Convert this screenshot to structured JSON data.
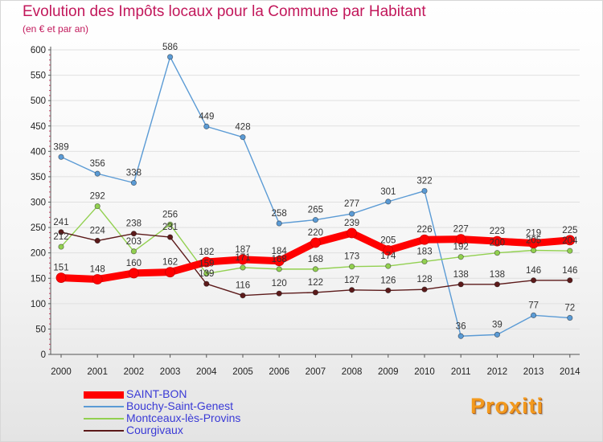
{
  "header": {
    "title": "Evolution des Impôts locaux pour la Commune par Habitant",
    "subtitle": "(en € et par an)"
  },
  "logo": {
    "text": "Proxiti"
  },
  "colors": {
    "saint_bon": "#ff0000",
    "bouchy": "#5b9bd5",
    "montceaux": "#92d050",
    "courgivaux": "#5c1a1a",
    "title": "#c2185b",
    "legend_text": "#3a3ad6"
  },
  "chart_data": {
    "type": "line",
    "title": "Evolution des Impôts locaux pour la Commune par Habitant",
    "subtitle": "(en € et par an)",
    "x": [
      "2000",
      "2001",
      "2002",
      "2003",
      "2004",
      "2005",
      "2006",
      "2007",
      "2008",
      "2009",
      "2010",
      "2011",
      "2012",
      "2013",
      "2014"
    ],
    "ylim": [
      0,
      600
    ],
    "yticks": [
      0,
      50,
      100,
      150,
      200,
      250,
      300,
      350,
      400,
      450,
      500,
      550,
      600
    ],
    "legend_position": "bottom-left",
    "series": [
      {
        "name": "SAINT-BON",
        "color": "#ff0000",
        "style": "thick",
        "values": [
          151,
          148,
          160,
          162,
          182,
          187,
          184,
          220,
          239,
          205,
          226,
          227,
          223,
          219,
          225
        ]
      },
      {
        "name": "Bouchy-Saint-Genest",
        "color": "#5b9bd5",
        "style": "thin",
        "values": [
          389,
          356,
          338,
          586,
          449,
          428,
          258,
          265,
          277,
          301,
          322,
          36,
          39,
          77,
          72
        ]
      },
      {
        "name": "Montceaux-lès-Provins",
        "color": "#92d050",
        "style": "thin",
        "values": [
          212,
          292,
          203,
          256,
          159,
          171,
          168,
          168,
          173,
          174,
          183,
          192,
          200,
          205,
          204
        ]
      },
      {
        "name": "Courgivaux",
        "color": "#5c1a1a",
        "style": "thin",
        "values": [
          241,
          224,
          238,
          231,
          139,
          116,
          120,
          122,
          127,
          126,
          128,
          138,
          138,
          146,
          146
        ]
      }
    ]
  }
}
